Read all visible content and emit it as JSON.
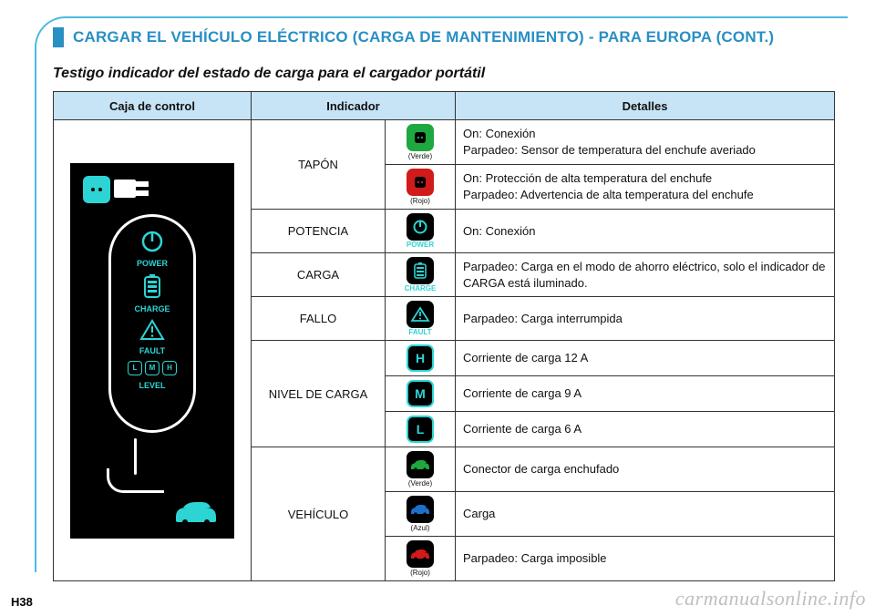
{
  "page": {
    "title": "CARGAR EL VEHÍCULO ELÉCTRICO (CARGA DE MANTENIMIENTO) - PARA EUROPA (CONT.)",
    "subtitle": "Testigo indicador del estado de carga para el cargador portátil",
    "page_number": "H38",
    "watermark": "carmanualsonline.info"
  },
  "colors": {
    "accent": "#2a8fc3",
    "header_bg": "#c6e4f5",
    "teal": "#2dd4d4",
    "green": "#1fa83f",
    "red": "#d11a1a",
    "blue": "#1f6fc9",
    "black": "#000000",
    "white": "#ffffff",
    "border": "#333333"
  },
  "table": {
    "headers": {
      "control": "Caja de control",
      "indicator": "Indicador",
      "details": "Detalles"
    },
    "indicators": {
      "tapon": "TAPÓN",
      "potencia": "POTENCIA",
      "carga": "CARGA",
      "fallo": "FALLO",
      "nivel": "NIVEL DE CARGA",
      "vehiculo": "VEHÍCULO"
    },
    "icon_captions": {
      "verde": "(Verde)",
      "rojo": "(Rojo)",
      "azul": "(Azul)",
      "power": "POWER",
      "charge": "CHARGE",
      "fault": "FAULT",
      "H": "H",
      "M": "M",
      "L": "L"
    },
    "details": {
      "tapon_verde": "On: Conexión\nParpadeo: Sensor de temperatura del enchufe averiado",
      "tapon_rojo": "On: Protección de alta temperatura del enchufe\nParpadeo: Advertencia de alta temperatura del enchufe",
      "potencia": "On: Conexión",
      "carga": "Parpadeo: Carga en el modo de ahorro eléctrico, solo el indicador de CARGA está iluminado.",
      "fallo": "Parpadeo: Carga interrumpida",
      "nivel_h": "Corriente de carga 12 A",
      "nivel_m": "Corriente de carga 9 A",
      "nivel_l": "Corriente de carga 6 A",
      "veh_verde": "Conector de carga enchufado",
      "veh_azul": "Carga",
      "veh_rojo": "Parpadeo: Carga imposible"
    }
  },
  "charger_labels": {
    "power": "POWER",
    "charge": "CHARGE",
    "fault": "FAULT",
    "level": "LEVEL",
    "L": "L",
    "M": "M",
    "H": "H"
  }
}
